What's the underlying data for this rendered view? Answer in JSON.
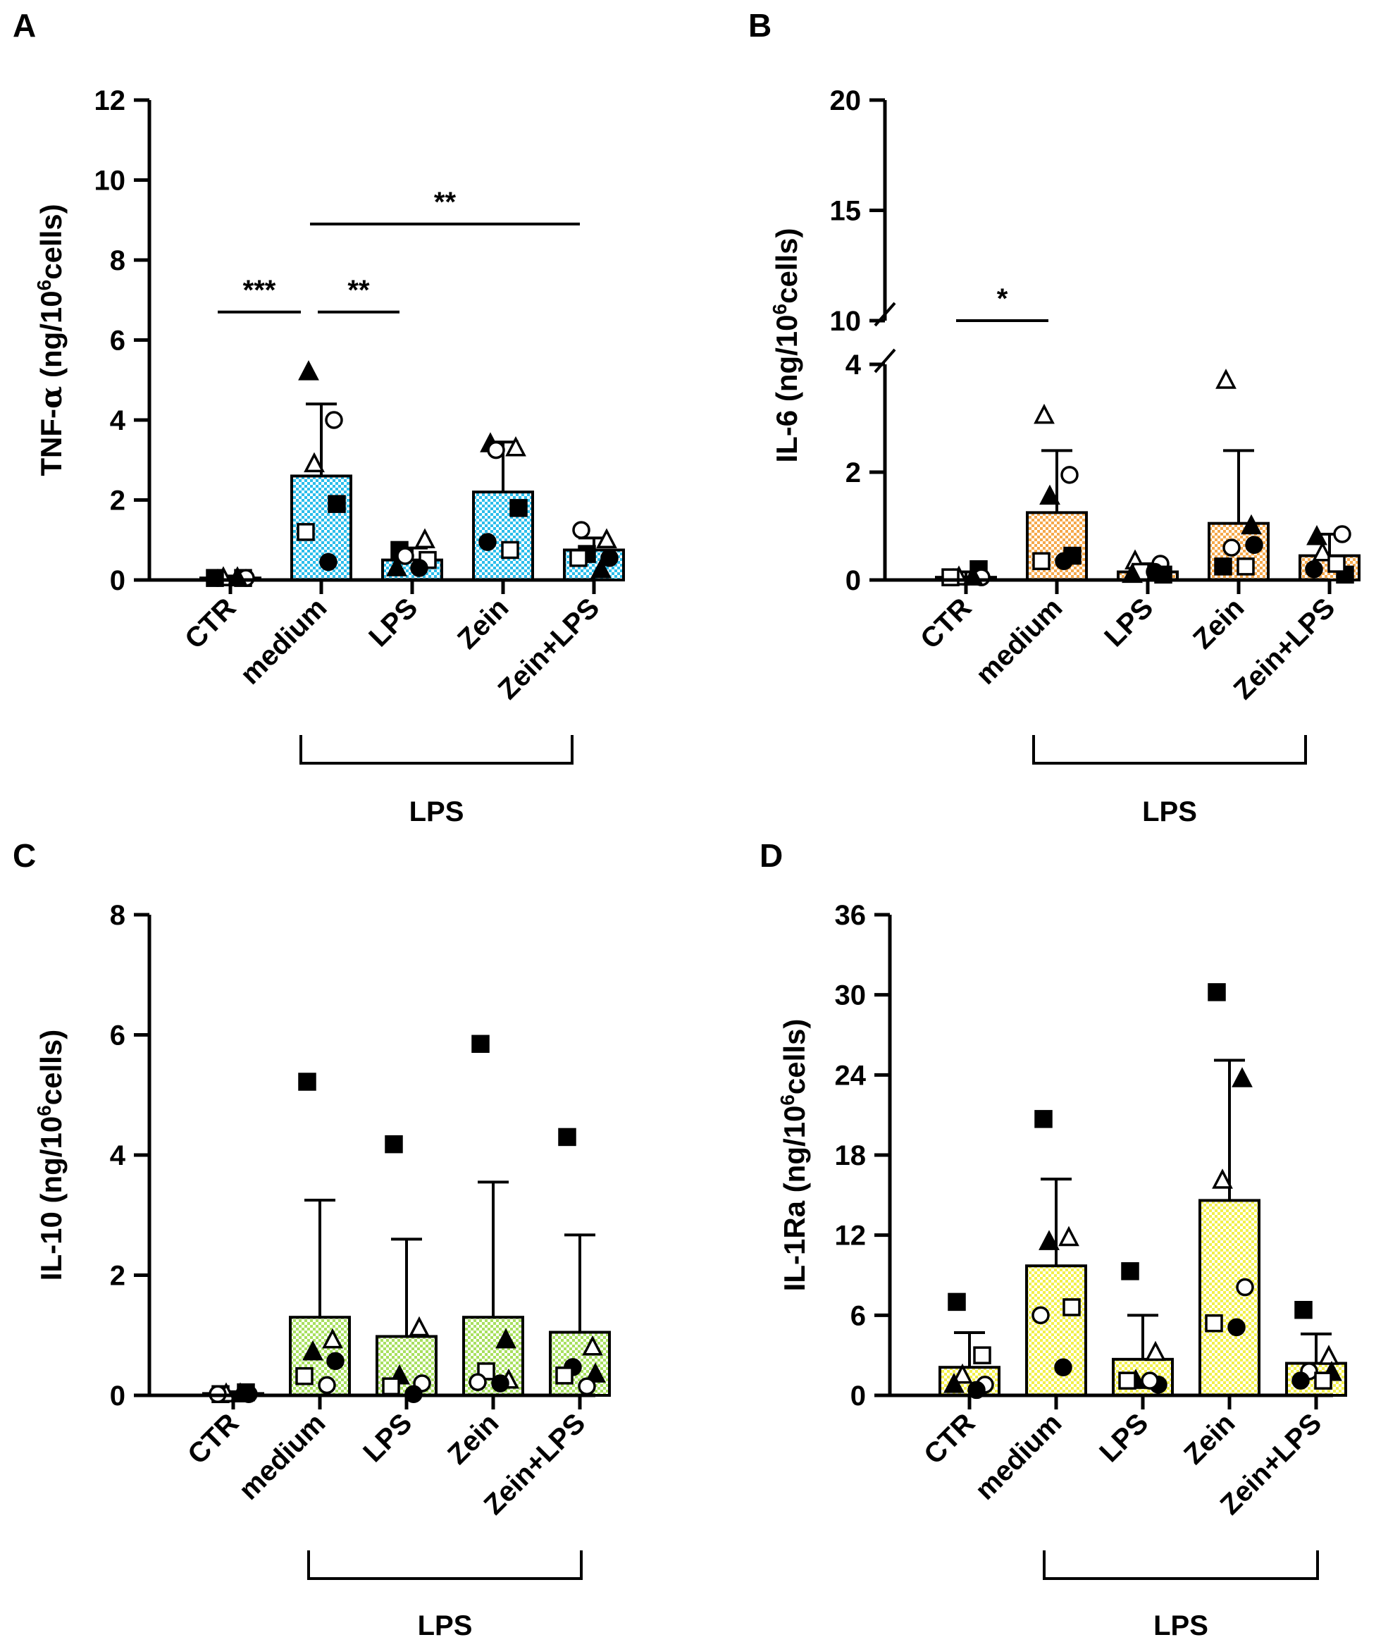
{
  "figure": {
    "group_label": "LPS",
    "categories": [
      "CTR",
      "medium",
      "LPS",
      "Zein",
      "Zein+LPS"
    ]
  },
  "chart_data": [
    {
      "panel": "A",
      "type": "bar",
      "ylabel": "TNF-α (ng/10^6cells)",
      "ylabel_parts": [
        "TNF-",
        "α",
        " (ng/10",
        "6",
        "cells)"
      ],
      "ylim": [
        0,
        12
      ],
      "yticks": [
        0,
        2,
        4,
        6,
        8,
        10,
        12
      ],
      "fill_color": "#2BBDEB",
      "categories": [
        "CTR",
        "medium",
        "LPS",
        "Zein",
        "Zein+LPS"
      ],
      "values": [
        0.05,
        2.6,
        0.5,
        2.2,
        0.75
      ],
      "errors": [
        0.05,
        1.8,
        0.3,
        1.25,
        0.3
      ],
      "points": [
        [
          {
            "m": "circle",
            "f": true,
            "v": 0.05
          },
          {
            "m": "square",
            "f": false,
            "v": 0.05
          },
          {
            "m": "triangle",
            "f": false,
            "v": 0.05
          },
          {
            "m": "circle",
            "f": false,
            "v": 0.05
          },
          {
            "m": "square",
            "f": true,
            "v": 0.05
          },
          {
            "m": "triangle",
            "f": true,
            "v": 0.05
          }
        ],
        [
          {
            "m": "triangle",
            "f": true,
            "v": 5.2
          },
          {
            "m": "circle",
            "f": false,
            "v": 4.0
          },
          {
            "m": "triangle",
            "f": false,
            "v": 2.9
          },
          {
            "m": "square",
            "f": true,
            "v": 1.9
          },
          {
            "m": "square",
            "f": false,
            "v": 1.2
          },
          {
            "m": "circle",
            "f": true,
            "v": 0.45
          }
        ],
        [
          {
            "m": "square",
            "f": true,
            "v": 0.75
          },
          {
            "m": "triangle",
            "f": false,
            "v": 1.0
          },
          {
            "m": "circle",
            "f": false,
            "v": 0.6
          },
          {
            "m": "square",
            "f": false,
            "v": 0.5
          },
          {
            "m": "triangle",
            "f": true,
            "v": 0.3
          },
          {
            "m": "circle",
            "f": true,
            "v": 0.3
          }
        ],
        [
          {
            "m": "triangle",
            "f": true,
            "v": 3.4
          },
          {
            "m": "triangle",
            "f": false,
            "v": 3.3
          },
          {
            "m": "circle",
            "f": false,
            "v": 3.25
          },
          {
            "m": "square",
            "f": true,
            "v": 1.8
          },
          {
            "m": "circle",
            "f": true,
            "v": 0.95
          },
          {
            "m": "square",
            "f": false,
            "v": 0.75
          }
        ],
        [
          {
            "m": "circle",
            "f": false,
            "v": 1.25
          },
          {
            "m": "triangle",
            "f": false,
            "v": 1.0
          },
          {
            "m": "square",
            "f": true,
            "v": 0.65
          },
          {
            "m": "circle",
            "f": true,
            "v": 0.55
          },
          {
            "m": "square",
            "f": false,
            "v": 0.55
          },
          {
            "m": "triangle",
            "f": true,
            "v": 0.25
          }
        ]
      ],
      "significance": [
        {
          "label": "***",
          "from": 0,
          "to": 1,
          "y": 6.7
        },
        {
          "label": "**",
          "from": 1,
          "to": 2,
          "y": 6.7
        },
        {
          "label": "**",
          "from": 1,
          "to": 4,
          "y": 8.9
        }
      ]
    },
    {
      "panel": "B",
      "type": "bar",
      "ylabel": "IL-6 (ng/10^6cells)",
      "ylabel_parts": [
        "IL-6 (ng/10",
        "6",
        "cells)"
      ],
      "broken_axis": {
        "lower": [
          0,
          4
        ],
        "upper": [
          10,
          20
        ]
      },
      "yticks_lower": [
        0,
        2,
        4
      ],
      "yticks_upper": [
        10,
        15,
        20
      ],
      "fill_color": "#F5A84B",
      "categories": [
        "CTR",
        "medium",
        "LPS",
        "Zein",
        "Zein+LPS"
      ],
      "values": [
        0.05,
        1.25,
        0.15,
        1.05,
        0.45
      ],
      "errors": [
        0.1,
        1.15,
        0.15,
        1.35,
        0.4
      ],
      "points": [
        [
          {
            "m": "circle",
            "f": true,
            "v": 0.05
          },
          {
            "m": "square",
            "f": true,
            "v": 0.2
          },
          {
            "m": "triangle",
            "f": false,
            "v": 0.05
          },
          {
            "m": "circle",
            "f": false,
            "v": 0.05
          },
          {
            "m": "square",
            "f": false,
            "v": 0.05
          },
          {
            "m": "triangle",
            "f": true,
            "v": 0.05
          }
        ],
        [
          {
            "m": "triangle",
            "f": false,
            "v": 3.05
          },
          {
            "m": "circle",
            "f": false,
            "v": 1.95
          },
          {
            "m": "triangle",
            "f": true,
            "v": 1.55
          },
          {
            "m": "square",
            "f": true,
            "v": 0.45
          },
          {
            "m": "square",
            "f": false,
            "v": 0.35
          },
          {
            "m": "circle",
            "f": true,
            "v": 0.35
          }
        ],
        [
          {
            "m": "triangle",
            "f": false,
            "v": 0.35
          },
          {
            "m": "circle",
            "f": false,
            "v": 0.3
          },
          {
            "m": "square",
            "f": false,
            "v": 0.15
          },
          {
            "m": "square",
            "f": true,
            "v": 0.1
          },
          {
            "m": "triangle",
            "f": true,
            "v": 0.1
          },
          {
            "m": "circle",
            "f": true,
            "v": 0.15
          }
        ],
        [
          {
            "m": "triangle",
            "f": false,
            "v": 3.7
          },
          {
            "m": "triangle",
            "f": true,
            "v": 1.0
          },
          {
            "m": "circle",
            "f": false,
            "v": 0.6
          },
          {
            "m": "circle",
            "f": true,
            "v": 0.65
          },
          {
            "m": "square",
            "f": true,
            "v": 0.25
          },
          {
            "m": "square",
            "f": false,
            "v": 0.25
          }
        ],
        [
          {
            "m": "triangle",
            "f": true,
            "v": 0.8
          },
          {
            "m": "circle",
            "f": false,
            "v": 0.85
          },
          {
            "m": "triangle",
            "f": false,
            "v": 0.5
          },
          {
            "m": "square",
            "f": true,
            "v": 0.1
          },
          {
            "m": "circle",
            "f": true,
            "v": 0.2
          },
          {
            "m": "square",
            "f": false,
            "v": 0.3
          }
        ]
      ],
      "significance": [
        {
          "label": "*",
          "from": 0,
          "to": 1,
          "y": 10
        }
      ]
    },
    {
      "panel": "C",
      "type": "bar",
      "ylabel": "IL-10 (ng/10^6cells)",
      "ylabel_parts": [
        "IL-10 (ng/10",
        "6",
        "cells)"
      ],
      "ylim": [
        0,
        8
      ],
      "yticks": [
        0,
        2,
        4,
        6,
        8
      ],
      "fill_color": "#A8E05F",
      "categories": [
        "CTR",
        "medium",
        "LPS",
        "Zein",
        "Zein+LPS"
      ],
      "values": [
        0.03,
        1.3,
        0.98,
        1.3,
        1.05
      ],
      "errors": [
        0.03,
        1.95,
        1.62,
        2.25,
        1.62
      ],
      "points": [
        [
          {
            "m": "square",
            "f": false,
            "v": 0.02
          },
          {
            "m": "square",
            "f": true,
            "v": 0.05
          },
          {
            "m": "triangle",
            "f": false,
            "v": 0.02
          },
          {
            "m": "circle",
            "f": true,
            "v": 0.02
          },
          {
            "m": "circle",
            "f": false,
            "v": 0.02
          },
          {
            "m": "triangle",
            "f": true,
            "v": 0.02
          }
        ],
        [
          {
            "m": "square",
            "f": true,
            "v": 5.22
          },
          {
            "m": "triangle",
            "f": false,
            "v": 0.92
          },
          {
            "m": "triangle",
            "f": true,
            "v": 0.72
          },
          {
            "m": "circle",
            "f": true,
            "v": 0.57
          },
          {
            "m": "square",
            "f": false,
            "v": 0.32
          },
          {
            "m": "circle",
            "f": false,
            "v": 0.17
          }
        ],
        [
          {
            "m": "square",
            "f": true,
            "v": 4.18
          },
          {
            "m": "triangle",
            "f": false,
            "v": 1.12
          },
          {
            "m": "triangle",
            "f": true,
            "v": 0.32
          },
          {
            "m": "circle",
            "f": false,
            "v": 0.2
          },
          {
            "m": "square",
            "f": false,
            "v": 0.15
          },
          {
            "m": "circle",
            "f": true,
            "v": 0.02
          }
        ],
        [
          {
            "m": "square",
            "f": true,
            "v": 5.85
          },
          {
            "m": "triangle",
            "f": true,
            "v": 0.92
          },
          {
            "m": "square",
            "f": false,
            "v": 0.4
          },
          {
            "m": "triangle",
            "f": false,
            "v": 0.25
          },
          {
            "m": "circle",
            "f": false,
            "v": 0.22
          },
          {
            "m": "circle",
            "f": true,
            "v": 0.2
          }
        ],
        [
          {
            "m": "square",
            "f": true,
            "v": 4.3
          },
          {
            "m": "triangle",
            "f": false,
            "v": 0.8
          },
          {
            "m": "circle",
            "f": true,
            "v": 0.47
          },
          {
            "m": "triangle",
            "f": true,
            "v": 0.35
          },
          {
            "m": "square",
            "f": false,
            "v": 0.33
          },
          {
            "m": "circle",
            "f": false,
            "v": 0.15
          }
        ]
      ],
      "significance": []
    },
    {
      "panel": "D",
      "type": "bar",
      "ylabel": "IL-1Ra (ng/10^6cells)",
      "ylabel_parts": [
        "IL-1Ra (ng/10",
        "6",
        "cells)"
      ],
      "ylim": [
        0,
        36
      ],
      "yticks": [
        0,
        6,
        12,
        18,
        24,
        30,
        36
      ],
      "fill_color": "#F2F04A",
      "categories": [
        "CTR",
        "medium",
        "LPS",
        "Zein",
        "Zein+LPS"
      ],
      "values": [
        2.1,
        9.7,
        2.7,
        14.6,
        2.4
      ],
      "errors": [
        2.6,
        6.5,
        3.3,
        10.5,
        2.2
      ],
      "points": [
        [
          {
            "m": "square",
            "f": true,
            "v": 7.0
          },
          {
            "m": "square",
            "f": false,
            "v": 3.0
          },
          {
            "m": "triangle",
            "f": false,
            "v": 1.5
          },
          {
            "m": "circle",
            "f": false,
            "v": 0.8
          },
          {
            "m": "triangle",
            "f": true,
            "v": 0.8
          },
          {
            "m": "circle",
            "f": true,
            "v": 0.4
          }
        ],
        [
          {
            "m": "square",
            "f": true,
            "v": 20.7
          },
          {
            "m": "triangle",
            "f": false,
            "v": 11.8
          },
          {
            "m": "triangle",
            "f": true,
            "v": 11.5
          },
          {
            "m": "square",
            "f": false,
            "v": 6.6
          },
          {
            "m": "circle",
            "f": false,
            "v": 6.0
          },
          {
            "m": "circle",
            "f": true,
            "v": 2.1
          }
        ],
        [
          {
            "m": "square",
            "f": true,
            "v": 9.3
          },
          {
            "m": "triangle",
            "f": false,
            "v": 3.2
          },
          {
            "m": "triangle",
            "f": true,
            "v": 1.1
          },
          {
            "m": "circle",
            "f": true,
            "v": 0.8
          },
          {
            "m": "square",
            "f": false,
            "v": 1.1
          },
          {
            "m": "circle",
            "f": false,
            "v": 1.1
          }
        ],
        [
          {
            "m": "square",
            "f": true,
            "v": 30.2
          },
          {
            "m": "triangle",
            "f": true,
            "v": 23.7
          },
          {
            "m": "triangle",
            "f": false,
            "v": 16.1
          },
          {
            "m": "circle",
            "f": false,
            "v": 8.1
          },
          {
            "m": "square",
            "f": false,
            "v": 5.4
          },
          {
            "m": "circle",
            "f": true,
            "v": 5.1
          }
        ],
        [
          {
            "m": "square",
            "f": true,
            "v": 6.4
          },
          {
            "m": "triangle",
            "f": false,
            "v": 2.9
          },
          {
            "m": "circle",
            "f": false,
            "v": 1.8
          },
          {
            "m": "triangle",
            "f": true,
            "v": 1.7
          },
          {
            "m": "circle",
            "f": true,
            "v": 1.1
          },
          {
            "m": "square",
            "f": false,
            "v": 1.1
          }
        ]
      ],
      "significance": []
    }
  ]
}
